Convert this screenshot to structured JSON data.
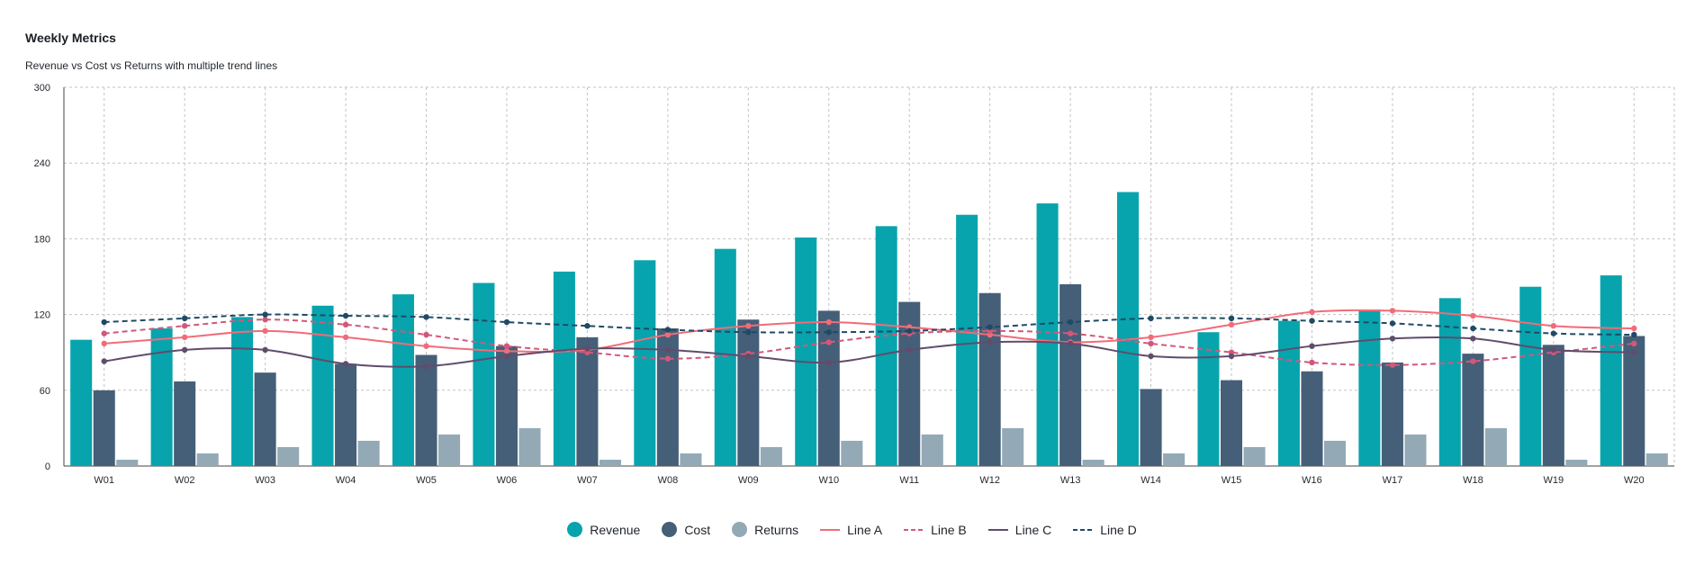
{
  "chart_data": {
    "type": "bar",
    "title": "Weekly Metrics",
    "subtitle": "Revenue vs Cost vs Returns with multiple trend lines",
    "categories": [
      "W01",
      "W02",
      "W03",
      "W04",
      "W05",
      "W06",
      "W07",
      "W08",
      "W09",
      "W10",
      "W11",
      "W12",
      "W13",
      "W14",
      "W15",
      "W16",
      "W17",
      "W18",
      "W19",
      "W20"
    ],
    "ylim": [
      0,
      300
    ],
    "yticks": [
      0,
      60,
      120,
      180,
      240,
      300
    ],
    "grid": true,
    "legend_position": "bottom",
    "bar_series": [
      {
        "name": "Revenue",
        "color": "#07a4ad",
        "values": [
          100,
          109,
          118,
          127,
          136,
          145,
          154,
          163,
          172,
          181,
          190,
          199,
          208,
          217,
          106,
          115,
          124,
          133,
          142,
          151
        ]
      },
      {
        "name": "Cost",
        "color": "#465f78",
        "values": [
          60,
          67,
          74,
          81,
          88,
          95,
          102,
          109,
          116,
          123,
          130,
          137,
          144,
          61,
          68,
          75,
          82,
          89,
          96,
          103
        ]
      },
      {
        "name": "Returns",
        "color": "#93a9b6",
        "values": [
          5,
          10,
          15,
          20,
          25,
          30,
          5,
          10,
          15,
          20,
          25,
          30,
          5,
          10,
          15,
          20,
          25,
          30,
          5,
          10
        ]
      }
    ],
    "line_series": [
      {
        "name": "Line A",
        "color": "#f26b78",
        "dashed": false,
        "values": [
          97,
          102,
          107,
          102,
          95,
          91,
          92,
          104,
          111,
          114,
          110,
          104,
          98,
          102,
          112,
          122,
          123,
          119,
          111,
          109
        ]
      },
      {
        "name": "Line B",
        "color": "#d2587b",
        "dashed": true,
        "values": [
          105,
          111,
          116,
          112,
          104,
          95,
          90,
          85,
          89,
          98,
          105,
          107,
          105,
          97,
          90,
          82,
          80,
          83,
          90,
          97
        ]
      },
      {
        "name": "Line C",
        "color": "#604c6c",
        "dashed": false,
        "values": [
          83,
          92,
          92,
          81,
          79,
          87,
          93,
          92,
          87,
          82,
          92,
          98,
          97,
          87,
          87,
          95,
          101,
          101,
          92,
          90
        ]
      },
      {
        "name": "Line D",
        "color": "#1f4a66",
        "dashed": true,
        "values": [
          114,
          117,
          120,
          119,
          118,
          114,
          111,
          108,
          106,
          106,
          107,
          110,
          114,
          117,
          117,
          115,
          113,
          109,
          105,
          104
        ]
      }
    ]
  }
}
